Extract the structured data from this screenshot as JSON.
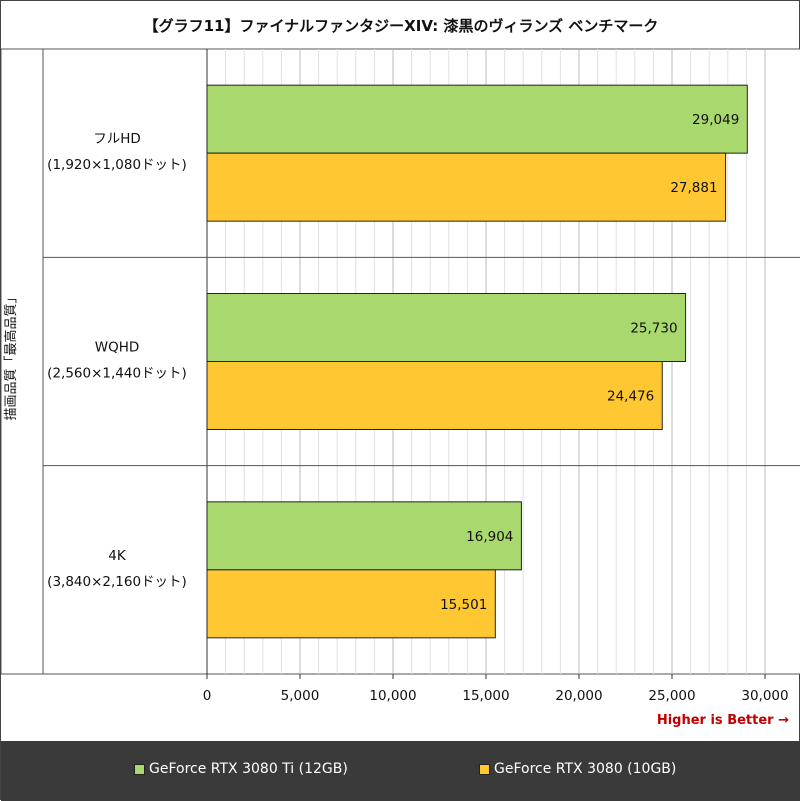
{
  "title": "【グラフ11】ファイナルファンタジーXIV: 漆黒のヴィランズ ベンチマーク",
  "footer_note": "Higher is Better →",
  "chart_data": {
    "type": "bar",
    "orientation": "horizontal",
    "title": "【グラフ11】ファイナルファンタジーXIV: 漆黒のヴィランズ ベンチマーク",
    "ylabel": "描画品質「最高品質」",
    "xlim": [
      0,
      30000
    ],
    "xticks": [
      "0",
      "5,000",
      "10,000",
      "15,000",
      "20,000",
      "25,000",
      "30,000"
    ],
    "xtick_values": [
      0,
      5000,
      10000,
      15000,
      20000,
      25000,
      30000
    ],
    "grid": true,
    "legend_position": "bottom",
    "categories": [
      {
        "name": "フルHD",
        "sub": "(1,920×1,080ドット)"
      },
      {
        "name": "WQHD",
        "sub": "(2,560×1,440ドット)"
      },
      {
        "name": "4K",
        "sub": "(3,840×2,160ドット)"
      }
    ],
    "series": [
      {
        "name": "GeForce RTX 3080 Ti (12GB)",
        "color": "#a9d86e",
        "values": [
          29049,
          25730,
          16904
        ],
        "labels": [
          "29,049",
          "25,730",
          "16,904"
        ]
      },
      {
        "name": "GeForce RTX 3080 (10GB)",
        "color": "#ffc833",
        "values": [
          27881,
          24476,
          15501
        ],
        "labels": [
          "27,881",
          "24,476",
          "15,501"
        ]
      }
    ]
  }
}
